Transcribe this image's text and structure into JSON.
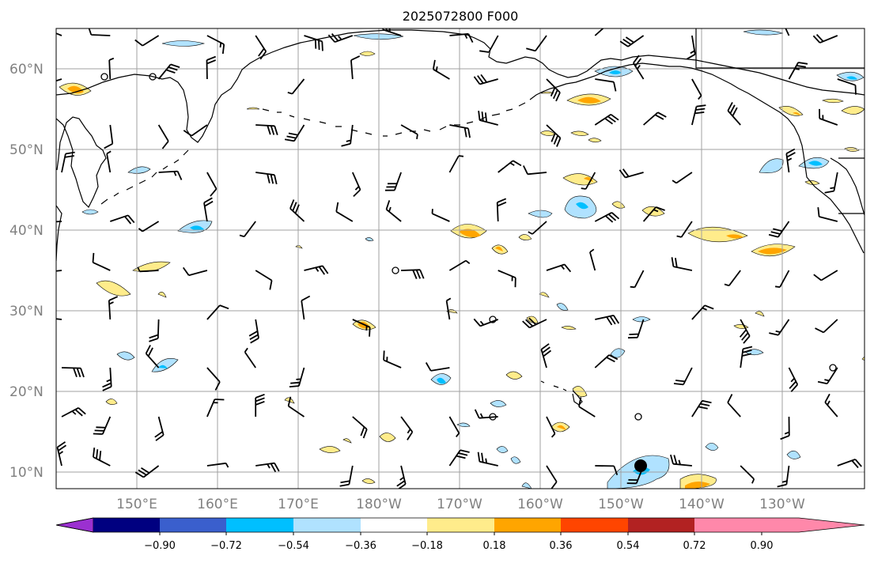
{
  "title": "2025072800 F000",
  "lat_labels": [
    "60°N",
    "50°N",
    "40°N",
    "30°N",
    "20°N",
    "10°N"
  ],
  "lon_labels": [
    "150°E",
    "160°E",
    "170°E",
    "180°W",
    "170°W",
    "160°W",
    "150°W",
    "140°W",
    "130°W"
  ],
  "colorbar": {
    "tick_labels": [
      "−0.90",
      "−0.72",
      "−0.54",
      "−0.36",
      "−0.18",
      "0.18",
      "0.36",
      "0.54",
      "0.72",
      "0.90"
    ],
    "colors": [
      "#9b30d0",
      "#000080",
      "#3a5fcd",
      "#00bfff",
      "#b0e2ff",
      "#ffffff",
      "#ffec8b",
      "#ffa500",
      "#ff4500",
      "#b22222",
      "#ff88aa"
    ]
  },
  "colors": {
    "light_blue": "#b0e2ff",
    "blue": "#00bfff",
    "light_yellow": "#ffec8b",
    "orange": "#ffa500"
  },
  "marker": {
    "name": "storm-center",
    "lon": -152.0,
    "lat": 11.0
  }
}
